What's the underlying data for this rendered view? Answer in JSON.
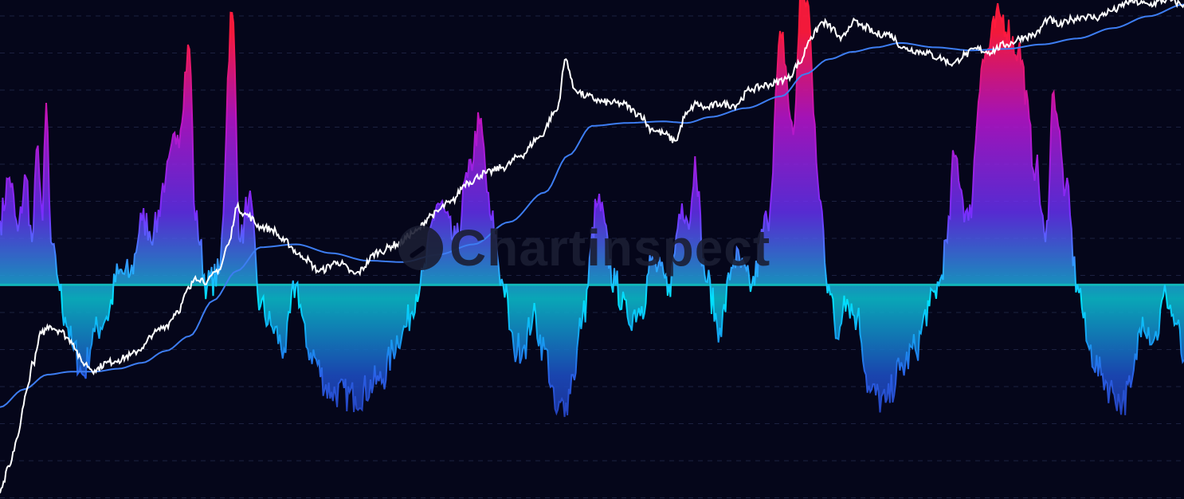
{
  "watermark": {
    "text": "Chartinspect"
  },
  "chart_data": {
    "type": "area",
    "title": "",
    "xlabel": "",
    "ylabel": "",
    "grid": true,
    "legend": "none",
    "x_range": [
      0,
      100
    ],
    "zero_baseline": true,
    "colors": {
      "background": "#05061a",
      "price_line": "#ffffff",
      "moving_average": "#3d7df2",
      "oscillator_low": "#00e5ff",
      "oscillator_mid": "#7b2cff",
      "oscillator_high": "#ff1a3c",
      "oscillator_negative_deep": "#1d1f8a",
      "grid": "#1c2140"
    },
    "series": [
      {
        "kind": "oscillator",
        "ylim": [
          -1.0,
          1.33
        ],
        "x": [
          0,
          0.8,
          1.5,
          2.2,
          2.7,
          3.2,
          3.6,
          3.9,
          4.3,
          4.8,
          5.5,
          6.2,
          7.0,
          8.0,
          9.0,
          10.0,
          11.0,
          12.0,
          13.0,
          14.0,
          15.0,
          16.0,
          16.5,
          17.5,
          18.5,
          19.6,
          20.3,
          21.0,
          22.0,
          23.0,
          24.0,
          25.0,
          26.0,
          28.0,
          30.0,
          32.0,
          34.0,
          35.5,
          37.0,
          38.5,
          39.5,
          40.5,
          41.5,
          42.5,
          43.4,
          44.3,
          45.0,
          46.0,
          47.0,
          47.8,
          48.4,
          49.2,
          50.5,
          52.0,
          53.0,
          54.2,
          55.0,
          56.5,
          57.6,
          58.3,
          58.7,
          59.5,
          60.8,
          62.0,
          63.5,
          64.8,
          66.0,
          67.0,
          67.7,
          68.3,
          68.7,
          69.2,
          70.0,
          70.7,
          71.3,
          72.4,
          73.5,
          74.8,
          76.0,
          77.3,
          78.5,
          79.3,
          80.0,
          80.6,
          81.8,
          83.0,
          84.5,
          86.0,
          87.5,
          88.3,
          89.0,
          90.0,
          91.0,
          92.0,
          93.0,
          94.0,
          94.8,
          95.5,
          96.5,
          97.5,
          98.5,
          99.3,
          100.0
        ],
        "y": [
          0.3,
          0.5,
          0.25,
          0.5,
          0.2,
          0.65,
          0.3,
          0.85,
          0.2,
          0.05,
          -0.15,
          -0.3,
          -0.42,
          -0.22,
          -0.15,
          0.05,
          0.05,
          0.3,
          0.25,
          0.5,
          0.7,
          1.1,
          0.3,
          0.0,
          0.05,
          1.27,
          0.2,
          0.4,
          -0.1,
          -0.2,
          -0.3,
          0.0,
          -0.3,
          -0.5,
          -0.52,
          -0.45,
          -0.22,
          0.0,
          0.38,
          0.2,
          0.5,
          0.75,
          0.3,
          0.0,
          -0.3,
          -0.28,
          -0.15,
          -0.3,
          -0.6,
          -0.55,
          -0.42,
          -0.15,
          0.38,
          0.0,
          -0.15,
          -0.1,
          0.1,
          0.0,
          0.38,
          0.3,
          0.6,
          0.05,
          -0.2,
          0.12,
          0.0,
          0.3,
          1.15,
          0.7,
          1.4,
          1.3,
          0.8,
          0.4,
          0.0,
          -0.25,
          -0.05,
          -0.15,
          -0.5,
          -0.55,
          -0.4,
          -0.3,
          -0.1,
          0.0,
          0.2,
          0.6,
          0.3,
          1.05,
          1.25,
          1.1,
          0.55,
          0.2,
          0.9,
          0.45,
          0.0,
          -0.3,
          -0.42,
          -0.5,
          -0.55,
          -0.48,
          -0.15,
          -0.25,
          -0.05,
          -0.18,
          -0.35
        ]
      },
      {
        "kind": "price",
        "ylim": [
          -0.62,
          2.75
        ],
        "x": [
          0,
          0.8,
          1.5,
          2.2,
          2.8,
          3.5,
          4.2,
          5.0,
          6.0,
          7.0,
          8.0,
          9.0,
          10.0,
          11.0,
          12.0,
          13.0,
          14.0,
          15.0,
          16.0,
          16.5,
          17.5,
          18.5,
          19.3,
          20.0,
          20.8,
          22.0,
          23.0,
          24.0,
          25.5,
          27.0,
          28.5,
          30.0,
          32.0,
          33.5,
          35.0,
          36.5,
          38.0,
          39.5,
          41.0,
          42.5,
          44.0,
          45.5,
          47.0,
          47.8,
          48.5,
          49.5,
          51.0,
          52.5,
          54.0,
          55.0,
          56.0,
          57.0,
          58.0,
          58.8,
          59.6,
          60.8,
          62.0,
          63.5,
          65.0,
          66.5,
          67.5,
          68.5,
          69.5,
          70.3,
          71.0,
          72.0,
          73.0,
          74.0,
          75.0,
          76.5,
          78.0,
          79.3,
          80.5,
          81.5,
          82.5,
          83.5,
          85.0,
          86.5,
          87.5,
          88.5,
          89.5,
          90.5,
          91.5,
          92.5,
          94.0,
          95.5,
          97.0,
          98.5,
          100.0
        ],
        "y": [
          -0.58,
          -0.4,
          -0.2,
          0.1,
          0.3,
          0.5,
          0.55,
          0.52,
          0.45,
          0.3,
          0.25,
          0.3,
          0.32,
          0.35,
          0.4,
          0.5,
          0.55,
          0.65,
          0.8,
          0.88,
          0.85,
          0.93,
          1.1,
          1.35,
          1.3,
          1.22,
          1.2,
          1.12,
          1.02,
          0.92,
          0.98,
          0.9,
          1.05,
          1.1,
          1.18,
          1.3,
          1.38,
          1.52,
          1.58,
          1.62,
          1.7,
          1.82,
          2.0,
          2.35,
          2.15,
          2.1,
          2.06,
          2.05,
          1.98,
          1.88,
          1.85,
          1.8,
          1.98,
          2.05,
          2.02,
          2.05,
          2.04,
          2.15,
          2.18,
          2.22,
          2.32,
          2.5,
          2.6,
          2.56,
          2.48,
          2.6,
          2.57,
          2.52,
          2.52,
          2.42,
          2.4,
          2.36,
          2.32,
          2.38,
          2.42,
          2.4,
          2.45,
          2.5,
          2.52,
          2.62,
          2.58,
          2.62,
          2.64,
          2.63,
          2.68,
          2.74,
          2.72,
          2.75,
          2.72
        ]
      },
      {
        "kind": "moving_average",
        "ylim": [
          -0.62,
          2.75
        ],
        "x": [
          0,
          2.0,
          4.0,
          6.0,
          8.0,
          10.0,
          12.0,
          14.0,
          16.0,
          18.0,
          20.0,
          22.0,
          25.0,
          28.0,
          31.0,
          34.0,
          37.0,
          40.0,
          43.0,
          46.0,
          48.0,
          50.0,
          53.0,
          56.0,
          58.0,
          60.0,
          63.0,
          66.0,
          68.0,
          70.0,
          72.0,
          74.0,
          76.0,
          79.0,
          82.0,
          85.0,
          88.0,
          91.0,
          94.0,
          97.0,
          100.0
        ],
        "y": [
          0.0,
          0.12,
          0.22,
          0.24,
          0.24,
          0.26,
          0.3,
          0.38,
          0.48,
          0.72,
          0.92,
          1.08,
          1.1,
          1.04,
          0.99,
          0.98,
          1.03,
          1.1,
          1.25,
          1.45,
          1.7,
          1.9,
          1.92,
          1.93,
          1.92,
          1.96,
          2.02,
          2.1,
          2.25,
          2.35,
          2.4,
          2.43,
          2.46,
          2.43,
          2.41,
          2.42,
          2.45,
          2.49,
          2.56,
          2.64,
          2.72
        ]
      }
    ]
  }
}
